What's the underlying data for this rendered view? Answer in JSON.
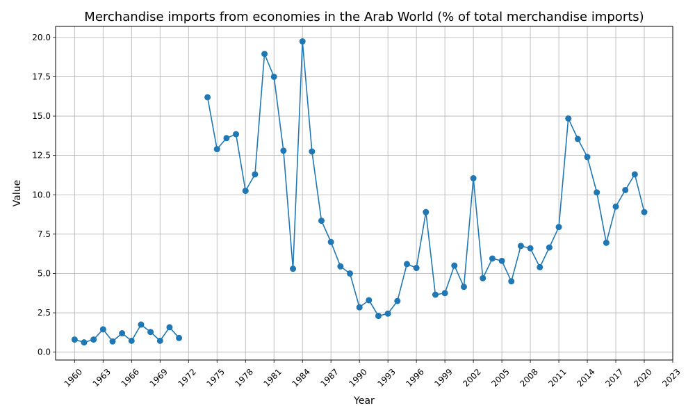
{
  "chart_data": {
    "type": "line",
    "title": "Merchandise imports from economies in the Arab World (% of total merchandise imports)",
    "xlabel": "Year",
    "ylabel": "Value",
    "xlim": [
      1958,
      2023
    ],
    "ylim": [
      -0.5,
      20.7
    ],
    "x_ticks": [
      1960,
      1963,
      1966,
      1969,
      1972,
      1975,
      1978,
      1981,
      1984,
      1987,
      1990,
      1993,
      1996,
      1999,
      2002,
      2005,
      2008,
      2011,
      2014,
      2017,
      2020,
      2023
    ],
    "y_ticks": [
      0.0,
      2.5,
      5.0,
      7.5,
      10.0,
      12.5,
      15.0,
      17.5,
      20.0
    ],
    "y_tick_labels": [
      "0.0",
      "2.5",
      "5.0",
      "7.5",
      "10.0",
      "12.5",
      "15.0",
      "17.5",
      "20.0"
    ],
    "grid": true,
    "color": "#1f77b4",
    "series": [
      {
        "x": [
          1960,
          1961,
          1962,
          1963,
          1964,
          1965,
          1966,
          1967,
          1968,
          1969,
          1970,
          1971,
          1972,
          1973,
          1974,
          1975,
          1976,
          1977,
          1978,
          1979,
          1980,
          1981,
          1982,
          1983,
          1984,
          1985,
          1986,
          1987,
          1988,
          1989,
          1990,
          1991,
          1992,
          1993,
          1994,
          1995,
          1996,
          1997,
          1998,
          1999,
          2000,
          2001,
          2002,
          2003,
          2004,
          2005,
          2006,
          2007,
          2008,
          2009,
          2010,
          2011,
          2012,
          2013,
          2014,
          2015,
          2016,
          2017,
          2018,
          2019,
          2020
        ],
        "y": [
          0.8,
          0.62,
          0.8,
          1.45,
          0.68,
          1.2,
          0.72,
          1.75,
          1.28,
          0.72,
          1.58,
          0.9,
          null,
          null,
          16.2,
          12.9,
          13.6,
          13.85,
          10.25,
          11.3,
          18.95,
          17.5,
          12.8,
          5.3,
          19.75,
          12.75,
          8.35,
          7.0,
          5.45,
          5.0,
          2.85,
          3.3,
          2.3,
          2.45,
          3.25,
          5.6,
          5.35,
          8.9,
          3.65,
          3.75,
          5.5,
          4.15,
          11.05,
          4.7,
          5.95,
          5.8,
          4.5,
          6.75,
          6.6,
          5.4,
          6.65,
          7.95,
          14.85,
          13.55,
          12.4,
          10.15,
          6.95,
          9.25,
          10.3,
          11.3,
          8.9
        ]
      }
    ]
  }
}
